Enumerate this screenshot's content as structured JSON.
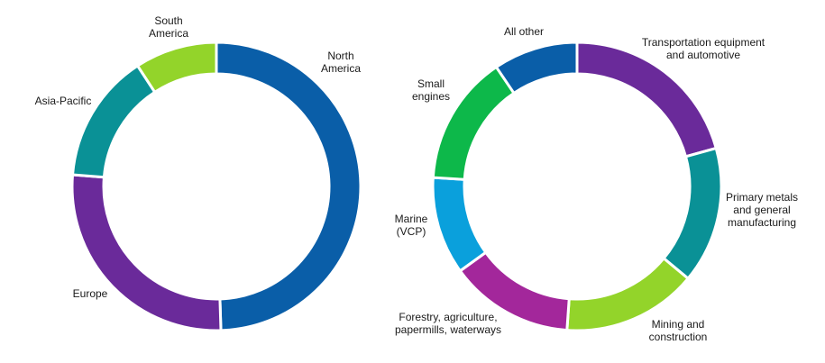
{
  "chart_data": [
    {
      "type": "pie",
      "variant": "donut",
      "title": "",
      "start": "top",
      "direction": "clockwise",
      "slices": [
        {
          "label": "North America",
          "value": 49.5,
          "color": "#0a5ea8"
        },
        {
          "label": "Europe",
          "value": 26.8,
          "color": "#6a2a9a"
        },
        {
          "label": "Asia-Pacific",
          "value": 14.5,
          "color": "#0a9196"
        },
        {
          "label": "South America",
          "value": 9.2,
          "color": "#93d42a"
        }
      ]
    },
    {
      "type": "pie",
      "variant": "donut",
      "title": "",
      "start": "top",
      "direction": "clockwise",
      "slices": [
        {
          "label": "Transportation equipment and automotive",
          "value": 19.5,
          "color": "#6a2a9a"
        },
        {
          "label": "Primary metals and general manufacturing",
          "value": 14.4,
          "color": "#0a9196"
        },
        {
          "label": "Mining and construction",
          "value": 14.2,
          "color": "#93d42a"
        },
        {
          "label": "Forestry, agriculture, papermills, waterways",
          "value": 13.1,
          "color": "#a3279b"
        },
        {
          "label": "Marine (VCP)",
          "value": 10.3,
          "color": "#0aa0dc"
        },
        {
          "label": "Small engines",
          "value": 13.7,
          "color": "#0db84a"
        },
        {
          "label": "All other",
          "value": 8.9,
          "color": "#0a5ea8"
        }
      ]
    }
  ]
}
